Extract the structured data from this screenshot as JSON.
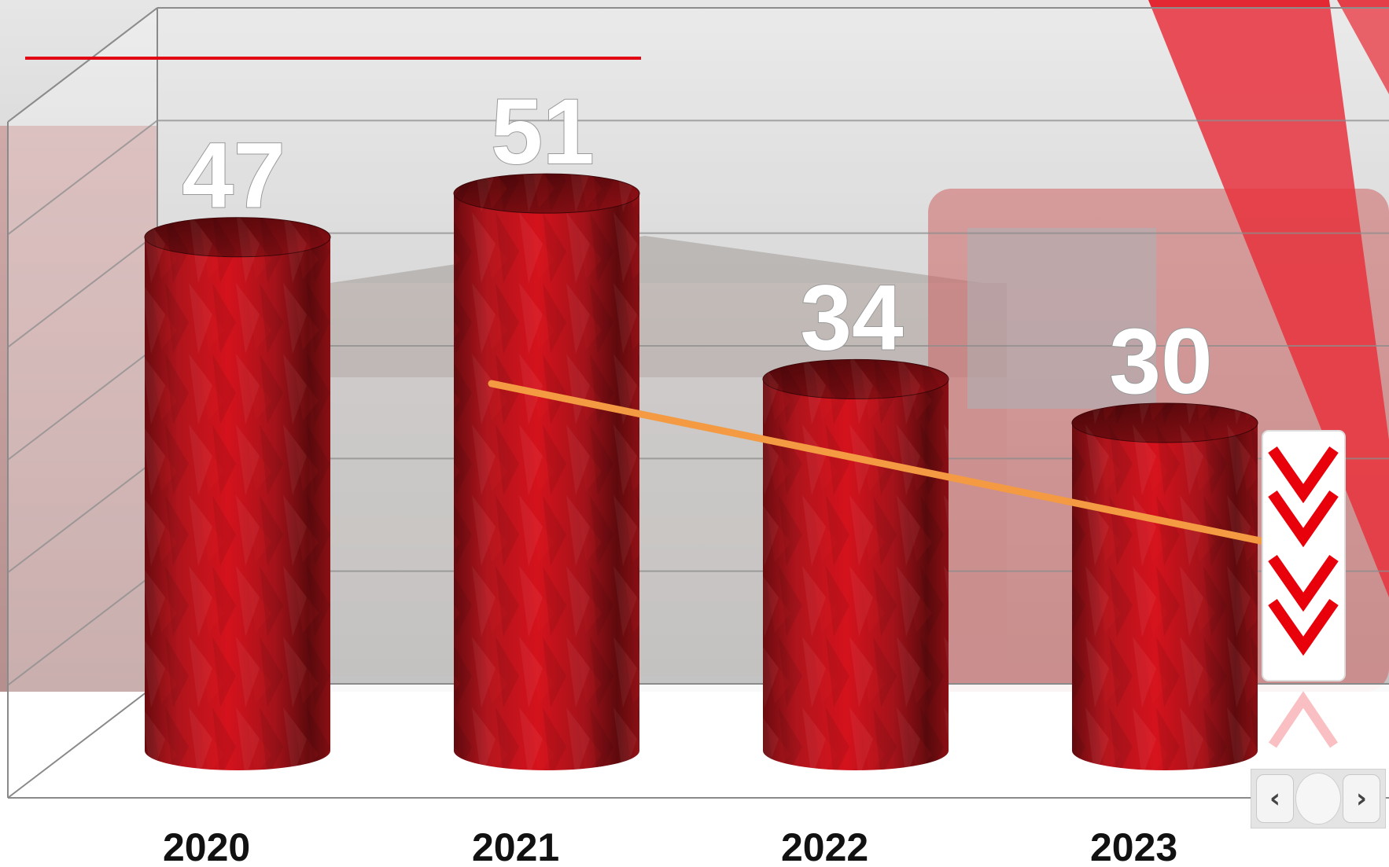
{
  "chart_data": {
    "type": "bar",
    "bar_shape": "cylinder",
    "categories": [
      "2020",
      "2021",
      "2022",
      "2023"
    ],
    "values": [
      47,
      51,
      34,
      30
    ],
    "title": "",
    "xlabel": "",
    "ylabel": "",
    "ylim": [
      0,
      60
    ],
    "grid": true,
    "legend": "none",
    "trend_arrow": {
      "from_category": "2021",
      "to_category": "2023",
      "direction": "down"
    },
    "colors": {
      "bar": "#b5121b",
      "bar_dark": "#5e0a0d",
      "arrow": "#f39a43",
      "accent": "#e30613",
      "chevron": "#e8000a"
    }
  },
  "pager": {
    "prev_icon": "‹",
    "next_icon": "›"
  }
}
